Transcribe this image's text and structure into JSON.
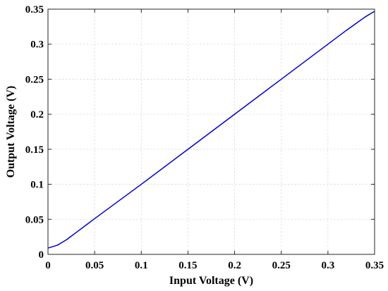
{
  "chart_data": {
    "type": "line",
    "title": "",
    "xlabel": "Input Voltage (V)",
    "ylabel": "Output Voltage (V)",
    "xlim": [
      0,
      0.35
    ],
    "ylim": [
      0,
      0.35
    ],
    "xticks": [
      0,
      0.05,
      0.1,
      0.15,
      0.2,
      0.25,
      0.3,
      0.35
    ],
    "yticks": [
      0,
      0.05,
      0.1,
      0.15,
      0.2,
      0.25,
      0.3,
      0.35
    ],
    "xtick_labels": [
      "0",
      "0.05",
      "0.1",
      "0.15",
      "0.2",
      "0.25",
      "0.3",
      "0.35"
    ],
    "ytick_labels": [
      "0",
      "0.05",
      "0.1",
      "0.15",
      "0.2",
      "0.25",
      "0.3",
      "0.35"
    ],
    "grid": true,
    "series": [
      {
        "color": "#0000cc",
        "x": [
          0,
          0.005,
          0.01,
          0.015,
          0.02,
          0.025,
          0.03,
          0.04,
          0.05,
          0.1,
          0.15,
          0.2,
          0.25,
          0.3,
          0.32,
          0.34,
          0.35
        ],
        "y": [
          0.009,
          0.011,
          0.013,
          0.017,
          0.021,
          0.026,
          0.031,
          0.041,
          0.051,
          0.1,
          0.15,
          0.2,
          0.25,
          0.3,
          0.32,
          0.339,
          0.347
        ]
      }
    ]
  }
}
